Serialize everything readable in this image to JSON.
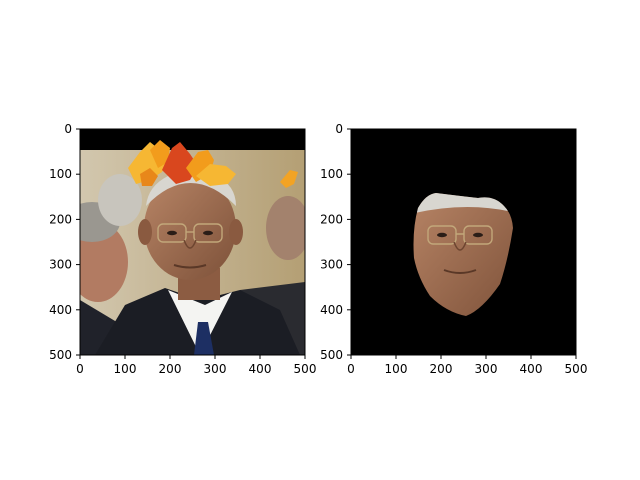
{
  "figure": {
    "panels": [
      {
        "id": "left",
        "content": "augmented-photo",
        "x_ticks": [
          "0",
          "100",
          "200",
          "300",
          "400",
          "500"
        ],
        "y_ticks": [
          "0",
          "100",
          "200",
          "300",
          "400",
          "500"
        ]
      },
      {
        "id": "right",
        "content": "face-mask",
        "x_ticks": [
          "0",
          "100",
          "200",
          "300",
          "400",
          "500"
        ],
        "y_ticks": [
          "0",
          "100",
          "200",
          "300",
          "400",
          "500"
        ]
      }
    ],
    "axis_range": {
      "x": [
        0,
        500
      ],
      "y": [
        0,
        500
      ]
    }
  },
  "colors": {
    "axes": "#000000",
    "mask_background": "#000000",
    "black_band": "#000000",
    "leaf_orange": "#F29C1C",
    "leaf_red": "#D9471E",
    "leaf_gold": "#F6B733",
    "suit_dark": "#1b1d24",
    "shirt": "#f4f4f2",
    "tie": "#1d2f63",
    "skin": "#9b6a4e",
    "hair": "#d8d6d0",
    "background_wall": "#bfae8c"
  }
}
